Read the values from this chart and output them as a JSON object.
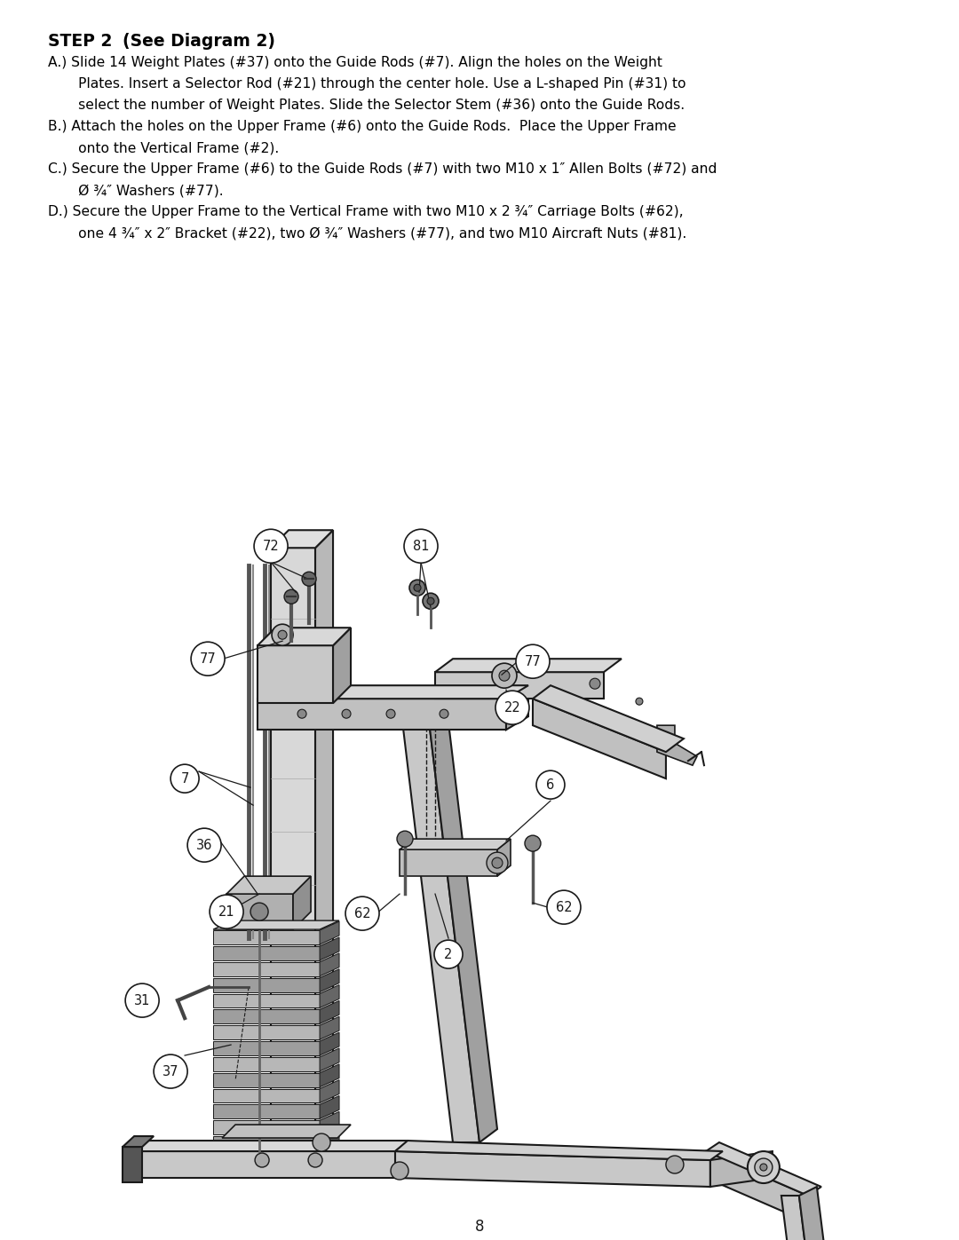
{
  "page_number": "8",
  "bg_color": "#ffffff",
  "text_color": "#000000",
  "title_bold": "STEP 2",
  "title_rest": "    (See Diagram 2)",
  "body_lines": [
    [
      "A.) ",
      "Slide 14 Weight Plates (#37) onto the Guide Rods (#7). Align the holes on the Weight"
    ],
    [
      "",
      "       Plates. Insert a Selector Rod (#21) through the center hole. Use a L-shaped Pin (#31) to"
    ],
    [
      "",
      "       select the number of Weight Plates. Slide the Selector Stem (#36) onto the Guide Rods."
    ],
    [
      "B.) ",
      "Attach the holes on the Upper Frame (#6) onto the Guide Rods.  Place the Upper Frame"
    ],
    [
      "",
      "       onto the Vertical Frame (#2)."
    ],
    [
      "C.) ",
      "Secure the Upper Frame (#6) to the Guide Rods (#7) with two M10 x 1″ Allen Bolts (#72) and"
    ],
    [
      "",
      "       Ø ¾″ Washers (#77)."
    ],
    [
      "D.) ",
      "Secure the Upper Frame to the Vertical Frame with two M10 x 2 ¾″ Carriage Bolts (#62),"
    ],
    [
      "",
      "       one 4 ¾″ x 2″ Bracket (#22), two Ø ¾″ Washers (#77), and two M10 Aircraft Nuts (#81)."
    ]
  ],
  "dark": "#1a1a1a",
  "mid": "#888888",
  "light": "#cccccc",
  "vlight": "#e8e8e8"
}
